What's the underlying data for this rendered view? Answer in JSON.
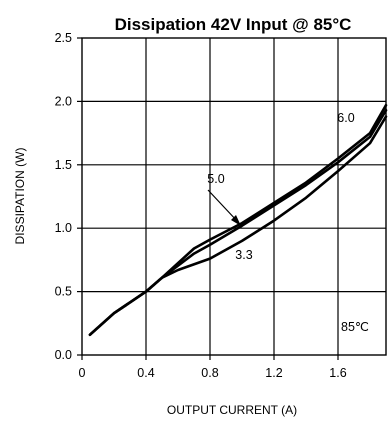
{
  "chart_data": {
    "type": "line",
    "title": "Dissipation 42V Input @ 85°C",
    "xlabel": "OUTPUT CURRENT (A)",
    "ylabel": "DISSIPATION (W)",
    "xlim": [
      0,
      1.9
    ],
    "ylim": [
      0,
      2.5
    ],
    "x_ticks": [
      "0",
      "0.4",
      "0.8",
      "1.2",
      "1.6"
    ],
    "y_ticks": [
      "0.0",
      "0.5",
      "1.0",
      "1.5",
      "2.0",
      "2.5"
    ],
    "grid": true,
    "series": [
      {
        "name": "6.0",
        "x": [
          0.05,
          0.2,
          0.4,
          0.5,
          0.7,
          0.8,
          1.0,
          1.2,
          1.4,
          1.6,
          1.8,
          1.9
        ],
        "y": [
          0.16,
          0.33,
          0.5,
          0.61,
          0.84,
          0.91,
          1.04,
          1.2,
          1.36,
          1.55,
          1.75,
          1.97
        ]
      },
      {
        "name": "5.0",
        "x": [
          0.05,
          0.2,
          0.4,
          0.5,
          0.7,
          0.8,
          1.0,
          1.2,
          1.4,
          1.6,
          1.8,
          1.9
        ],
        "y": [
          0.16,
          0.33,
          0.5,
          0.61,
          0.8,
          0.87,
          1.02,
          1.18,
          1.34,
          1.52,
          1.72,
          1.93
        ]
      },
      {
        "name": "3.3",
        "x": [
          0.05,
          0.2,
          0.4,
          0.5,
          0.6,
          0.8,
          1.0,
          1.2,
          1.4,
          1.6,
          1.8,
          1.9
        ],
        "y": [
          0.16,
          0.33,
          0.5,
          0.61,
          0.67,
          0.76,
          0.9,
          1.06,
          1.24,
          1.45,
          1.67,
          1.88
        ]
      }
    ],
    "annotations": {
      "label_6_0": "6.0",
      "label_5_0": "5.0",
      "label_3_3": "3.3",
      "temp": "85℃"
    }
  }
}
